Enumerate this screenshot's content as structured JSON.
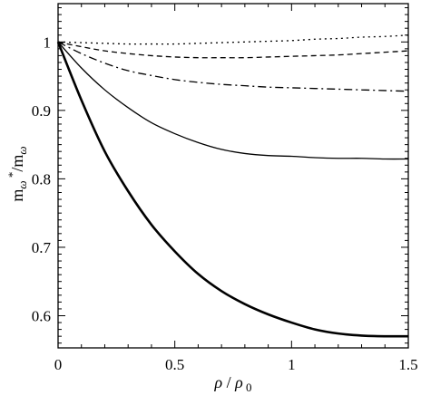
{
  "chart_data": {
    "type": "line",
    "title": "",
    "xlabel": "ρ / ρ 0",
    "ylabel": "m ω */m ω",
    "xlim": [
      0,
      1.5
    ],
    "ylim": [
      0.553,
      1.056
    ],
    "grid": false,
    "legend": "none",
    "x_ticks": [
      0,
      0.5,
      1,
      1.5
    ],
    "x_tick_labels": [
      "0",
      "0.5",
      "1",
      "1.5"
    ],
    "y_ticks": [
      0.6,
      0.7,
      0.8,
      0.9,
      1.0
    ],
    "y_tick_labels": [
      "0.6",
      "0.7",
      "0.8",
      "0.9",
      "1"
    ],
    "x": [
      0,
      0.1,
      0.2,
      0.3,
      0.4,
      0.5,
      0.6,
      0.7,
      0.8,
      0.9,
      1.0,
      1.1,
      1.2,
      1.3,
      1.4,
      1.5
    ],
    "series": [
      {
        "style": "dotted",
        "stroke_width": 1.3,
        "values": [
          1.0,
          0.999,
          0.998,
          0.997,
          0.997,
          0.997,
          0.998,
          0.999,
          1.0,
          1.001,
          1.002,
          1.004,
          1.005,
          1.007,
          1.008,
          1.01
        ]
      },
      {
        "style": "dashed",
        "stroke_width": 1.3,
        "values": [
          1.0,
          0.993,
          0.987,
          0.983,
          0.98,
          0.978,
          0.977,
          0.977,
          0.977,
          0.978,
          0.979,
          0.98,
          0.981,
          0.983,
          0.985,
          0.987
        ]
      },
      {
        "style": "dashdot",
        "stroke_width": 1.3,
        "values": [
          1.0,
          0.983,
          0.969,
          0.958,
          0.951,
          0.945,
          0.941,
          0.938,
          0.936,
          0.934,
          0.933,
          0.932,
          0.931,
          0.93,
          0.929,
          0.928
        ]
      },
      {
        "style": "solid",
        "stroke_width": 1.3,
        "values": [
          1.0,
          0.962,
          0.93,
          0.904,
          0.882,
          0.866,
          0.853,
          0.843,
          0.837,
          0.834,
          0.833,
          0.831,
          0.83,
          0.83,
          0.829,
          0.829
        ]
      },
      {
        "style": "solid",
        "stroke_width": 2.6,
        "values": [
          1.0,
          0.915,
          0.84,
          0.782,
          0.733,
          0.694,
          0.661,
          0.636,
          0.617,
          0.602,
          0.59,
          0.58,
          0.574,
          0.571,
          0.57,
          0.57
        ]
      }
    ]
  }
}
